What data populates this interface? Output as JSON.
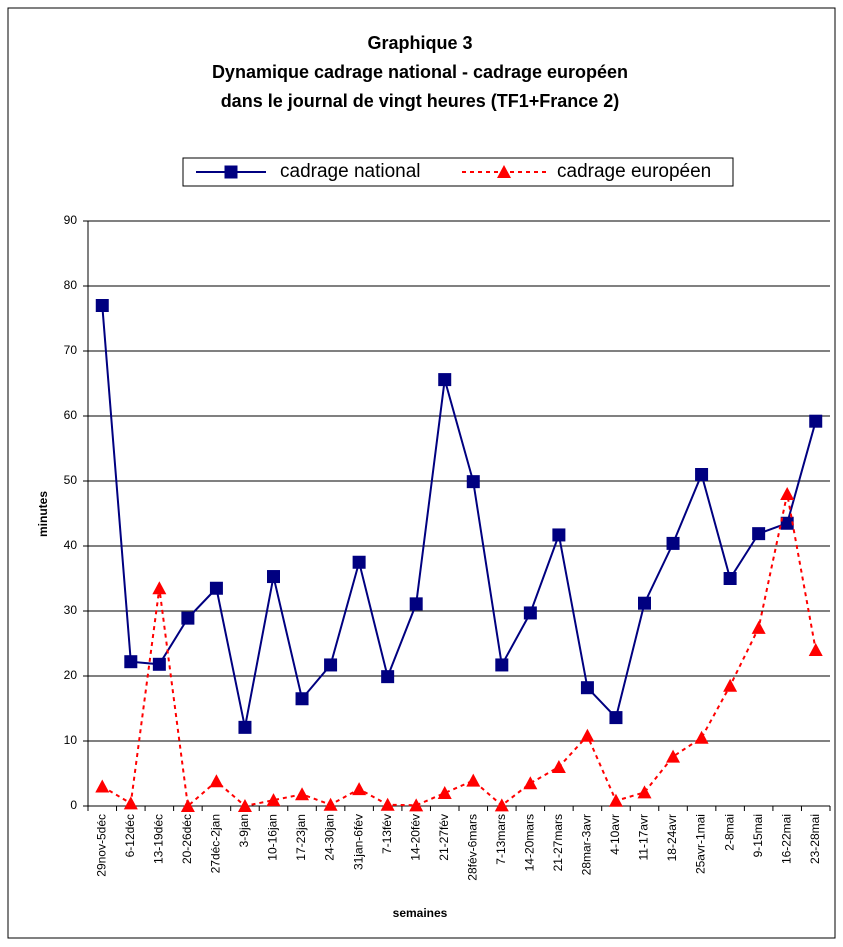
{
  "chart_data": {
    "type": "line",
    "title": [
      "Graphique 3",
      "Dynamique cadrage national - cadrage européen",
      "dans le journal de vingt heures (TF1+France 2)"
    ],
    "x_label": "semaines",
    "y_label": "minutes",
    "categories": [
      "29nov-5déc",
      "6-12déc",
      "13-19déc",
      "20-26déc",
      "27déc-2jan",
      "3-9jan",
      "10-16jan",
      "17-23jan",
      "24-30jan",
      "31jan-6fév",
      "7-13fév",
      "14-20fév",
      "21-27fév",
      "28fév-6mars",
      "7-13mars",
      "14-20mars",
      "21-27mars",
      "28mar-3avr",
      "4-10avr",
      "11-17avr",
      "18-24avr",
      "25avr-1mai",
      "2-8mai",
      "9-15mai",
      "16-22mai",
      "23-28mai"
    ],
    "series": [
      {
        "name": "cadrage national",
        "color": "#000080",
        "marker": "square",
        "dashed": false,
        "values": [
          77,
          22.2,
          21.8,
          28.9,
          33.5,
          12.1,
          35.3,
          16.5,
          21.7,
          37.5,
          19.9,
          31.1,
          65.6,
          49.9,
          21.7,
          29.7,
          41.7,
          18.2,
          13.6,
          31.2,
          40.4,
          51,
          35,
          41.9,
          43.5,
          59.2
        ]
      },
      {
        "name": "cadrage européen",
        "color": "#ff0000",
        "marker": "triangle",
        "dashed": true,
        "values": [
          3,
          0.4,
          33.5,
          0,
          3.8,
          0,
          0.9,
          1.8,
          0.2,
          2.6,
          0.2,
          0.1,
          2,
          3.9,
          0.1,
          3.5,
          6,
          10.8,
          0.8,
          2.1,
          7.6,
          10.5,
          18.5,
          27.4,
          48,
          24
        ]
      }
    ],
    "ylim": [
      0,
      90
    ],
    "yticks": [
      0,
      10,
      20,
      30,
      40,
      50,
      60,
      70,
      80,
      90
    ],
    "grid": true,
    "legend": "top"
  }
}
